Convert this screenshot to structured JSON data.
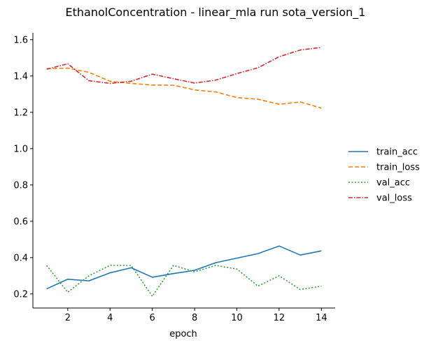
{
  "chart_data": {
    "type": "line",
    "title": "EthanolConcentration - linear_mla run sota_version_1",
    "xlabel": "epoch",
    "ylabel": "",
    "xlim": [
      0.35,
      14.65
    ],
    "ylim": [
      0.1225,
      1.6375
    ],
    "x_ticks": [
      2,
      4,
      6,
      8,
      10,
      12,
      14
    ],
    "y_ticks": [
      0.2,
      0.4,
      0.6,
      0.8,
      1.0,
      1.2,
      1.4,
      1.6
    ],
    "y_tick_labels": [
      "0.2",
      "0.4",
      "0.6",
      "0.8",
      "1.0",
      "1.2",
      "1.4",
      "1.6"
    ],
    "grid": false,
    "legend_position": "right",
    "x": [
      1,
      2,
      3,
      4,
      5,
      6,
      7,
      8,
      9,
      10,
      11,
      12,
      13,
      14
    ],
    "series": [
      {
        "name": "train_acc",
        "color": "#1f77b4",
        "dash": "solid",
        "values": [
          0.228,
          0.281,
          0.272,
          0.316,
          0.344,
          0.292,
          0.312,
          0.33,
          0.372,
          0.397,
          0.422,
          0.464,
          0.414,
          0.437
        ]
      },
      {
        "name": "train_loss",
        "color": "#ff7f0e",
        "dash": "dashed",
        "values": [
          1.44,
          1.443,
          1.42,
          1.371,
          1.359,
          1.35,
          1.349,
          1.323,
          1.312,
          1.281,
          1.272,
          1.244,
          1.257,
          1.223
        ]
      },
      {
        "name": "val_acc",
        "color": "#2ca02c",
        "dash": "dotted",
        "values": [
          0.357,
          0.209,
          0.3,
          0.357,
          0.357,
          0.187,
          0.357,
          0.322,
          0.357,
          0.337,
          0.243,
          0.3,
          0.224,
          0.243
        ]
      },
      {
        "name": "val_loss",
        "color": "#d62728",
        "dash": "dashdot",
        "values": [
          1.437,
          1.467,
          1.374,
          1.359,
          1.371,
          1.41,
          1.385,
          1.361,
          1.377,
          1.413,
          1.445,
          1.506,
          1.543,
          1.557
        ]
      }
    ]
  }
}
